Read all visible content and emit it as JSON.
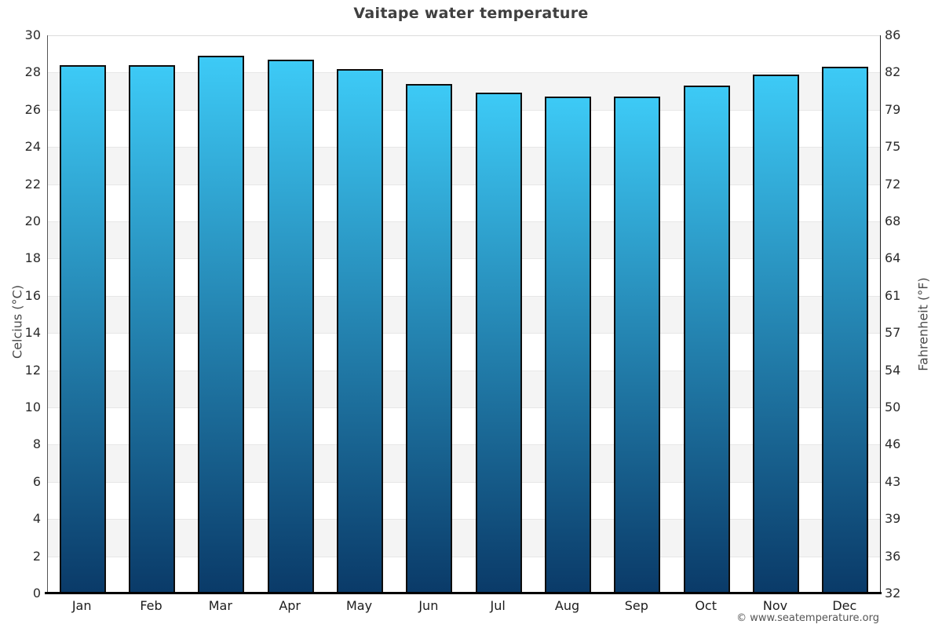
{
  "chart_data": {
    "type": "bar",
    "title": "Vaitape water temperature",
    "categories": [
      "Jan",
      "Feb",
      "Mar",
      "Apr",
      "May",
      "Jun",
      "Jul",
      "Aug",
      "Sep",
      "Oct",
      "Nov",
      "Dec"
    ],
    "values": [
      28.4,
      28.4,
      28.9,
      28.7,
      28.2,
      27.4,
      26.9,
      26.7,
      26.7,
      27.3,
      27.9,
      28.3
    ],
    "unit": "°C",
    "ylabel_left": "Celcius (°C)",
    "ylabel_right": "Fahrenheit (°F)",
    "celsius_ticks": [
      0,
      2,
      4,
      6,
      8,
      10,
      12,
      14,
      16,
      18,
      20,
      22,
      24,
      26,
      28,
      30
    ],
    "fahrenheit_ticks": [
      32,
      36,
      39,
      43,
      46,
      50,
      54,
      57,
      61,
      64,
      68,
      72,
      75,
      79,
      82,
      86
    ],
    "ylim": [
      0,
      30
    ],
    "legend": "none",
    "grid": "horizontal-alternating-bands",
    "colors": {
      "bar_gradient_top": "#3dcaf6",
      "bar_gradient_bottom": "#0a3a68",
      "bar_border": "#0d0d0d",
      "band_gray": "#f4f4f4",
      "gridline": "#e7e7e7",
      "baseline": "#000000",
      "title_text": "#3f3f3f",
      "tick_text": "#2b2b2b"
    }
  },
  "footer": {
    "credit": "© www.seatemperature.org"
  }
}
